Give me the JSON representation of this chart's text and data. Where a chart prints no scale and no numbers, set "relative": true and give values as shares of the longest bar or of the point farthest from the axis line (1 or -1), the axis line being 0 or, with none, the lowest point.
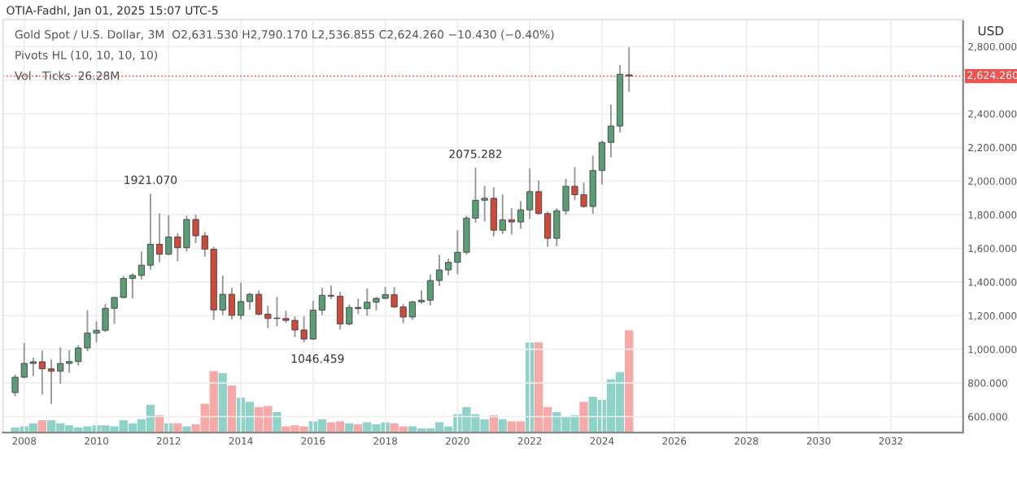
{
  "chart_data": [
    {
      "type": "candlestick",
      "title": "OTIA-Fadhl, Jan 01, 2025 15:07 UTC-5",
      "ylabel": "USD",
      "annotations": [
        "Gold Spot / U.S. Dollar, 3M  O2,631.530 H2,790.170 L2,536.855 C2,624.260 −10.430 (−0.40%)",
        "Pivots HL (10, 10, 10, 10)",
        "Vol · Ticks  26.28M",
        {
          "text": "1921.070",
          "x": "2011-07",
          "y": 1921.07
        },
        {
          "text": "2075.282",
          "x": "2020-07",
          "y": 2075.282
        },
        {
          "text": "1046.459",
          "x": "2015-10",
          "y": 1046.459
        }
      ],
      "x": [
        "2007-10",
        "2008-01",
        "2008-04",
        "2008-07",
        "2008-10",
        "2009-01",
        "2009-04",
        "2009-07",
        "2009-10",
        "2010-01",
        "2010-04",
        "2010-07",
        "2010-10",
        "2011-01",
        "2011-04",
        "2011-07",
        "2011-10",
        "2012-01",
        "2012-04",
        "2012-07",
        "2012-10",
        "2013-01",
        "2013-04",
        "2013-07",
        "2013-10",
        "2014-01",
        "2014-04",
        "2014-07",
        "2014-10",
        "2015-01",
        "2015-04",
        "2015-07",
        "2015-10",
        "2016-01",
        "2016-04",
        "2016-07",
        "2016-10",
        "2017-01",
        "2017-04",
        "2017-07",
        "2017-10",
        "2018-01",
        "2018-04",
        "2018-07",
        "2018-10",
        "2019-01",
        "2019-04",
        "2019-07",
        "2019-10",
        "2020-01",
        "2020-04",
        "2020-07",
        "2020-10",
        "2021-01",
        "2021-04",
        "2021-07",
        "2021-10",
        "2022-01",
        "2022-04",
        "2022-07",
        "2022-10",
        "2023-01",
        "2023-04",
        "2023-07",
        "2023-10",
        "2024-01",
        "2024-04",
        "2024-07",
        "2024-10"
      ],
      "ohlc": [
        [
          743,
          845,
          725,
          834
        ],
        [
          834,
          1032,
          833,
          916
        ],
        [
          916,
          946,
          845,
          926
        ],
        [
          926,
          988,
          735,
          884
        ],
        [
          884,
          935,
          681,
          870
        ],
        [
          870,
          1007,
          800,
          916
        ],
        [
          916,
          990,
          865,
          927
        ],
        [
          927,
          1018,
          908,
          1008
        ],
        [
          1008,
          1227,
          992,
          1096
        ],
        [
          1096,
          1162,
          1045,
          1113
        ],
        [
          1113,
          1265,
          1107,
          1244
        ],
        [
          1244,
          1308,
          1157,
          1308
        ],
        [
          1308,
          1432,
          1308,
          1421
        ],
        [
          1421,
          1447,
          1308,
          1439
        ],
        [
          1439,
          1577,
          1420,
          1500
        ],
        [
          1500,
          1921.07,
          1478,
          1624
        ],
        [
          1624,
          1803,
          1523,
          1565
        ],
        [
          1565,
          1792,
          1565,
          1668
        ],
        [
          1668,
          1685,
          1527,
          1604
        ],
        [
          1604,
          1790,
          1586,
          1772
        ],
        [
          1772,
          1796,
          1636,
          1675
        ],
        [
          1675,
          1693,
          1555,
          1595
        ],
        [
          1595,
          1605,
          1180,
          1234
        ],
        [
          1234,
          1434,
          1208,
          1327
        ],
        [
          1327,
          1361,
          1182,
          1202
        ],
        [
          1202,
          1392,
          1182,
          1284
        ],
        [
          1284,
          1332,
          1240,
          1327
        ],
        [
          1327,
          1345,
          1206,
          1209
        ],
        [
          1209,
          1255,
          1131,
          1183
        ],
        [
          1183,
          1307,
          1142,
          1183
        ],
        [
          1183,
          1224,
          1162,
          1172
        ],
        [
          1172,
          1191,
          1077,
          1115
        ],
        [
          1115,
          1191,
          1046.459,
          1061
        ],
        [
          1061,
          1283,
          1061,
          1233
        ],
        [
          1233,
          1362,
          1208,
          1321
        ],
        [
          1321,
          1375,
          1303,
          1316
        ],
        [
          1316,
          1337,
          1123,
          1151
        ],
        [
          1151,
          1262,
          1146,
          1249
        ],
        [
          1249,
          1296,
          1214,
          1242
        ],
        [
          1242,
          1357,
          1204,
          1280
        ],
        [
          1280,
          1307,
          1236,
          1303
        ],
        [
          1303,
          1366,
          1302,
          1325
        ],
        [
          1325,
          1365,
          1250,
          1252
        ],
        [
          1252,
          1265,
          1160,
          1192
        ],
        [
          1192,
          1284,
          1180,
          1282
        ],
        [
          1282,
          1346,
          1276,
          1292
        ],
        [
          1292,
          1439,
          1266,
          1409
        ],
        [
          1409,
          1557,
          1382,
          1472
        ],
        [
          1472,
          1535,
          1445,
          1517
        ],
        [
          1517,
          1703,
          1451,
          1577
        ],
        [
          1577,
          1789,
          1567,
          1780
        ],
        [
          1780,
          2075.282,
          1757,
          1886
        ],
        [
          1886,
          1966,
          1764,
          1898
        ],
        [
          1898,
          1959,
          1676,
          1708
        ],
        [
          1708,
          1916,
          1690,
          1770
        ],
        [
          1770,
          1834,
          1687,
          1757
        ],
        [
          1757,
          1877,
          1721,
          1829
        ],
        [
          1829,
          2070,
          1780,
          1937
        ],
        [
          1937,
          1998,
          1805,
          1807
        ],
        [
          1807,
          1814,
          1614,
          1660
        ],
        [
          1660,
          1834,
          1617,
          1824
        ],
        [
          1824,
          2009,
          1804,
          1969
        ],
        [
          1969,
          2079,
          1893,
          1919
        ],
        [
          1919,
          1987,
          1846,
          1849
        ],
        [
          1849,
          2146,
          1810,
          2063
        ],
        [
          2063,
          2236,
          1984,
          2230
        ],
        [
          2230,
          2450,
          2146,
          2327
        ],
        [
          2327,
          2685,
          2293,
          2635
        ],
        [
          2631.53,
          2790.17,
          2536.855,
          2624.26
        ]
      ],
      "ylim": [
        505,
        2960
      ],
      "yticks": [
        {
          "value": 600,
          "label": "600.000"
        },
        {
          "value": 800,
          "label": "800.000"
        },
        {
          "value": 1000,
          "label": "1,000.000"
        },
        {
          "value": 1200,
          "label": "1,200.000"
        },
        {
          "value": 1400,
          "label": "1,400.000"
        },
        {
          "value": 1600,
          "label": "1,600.000"
        },
        {
          "value": 1800,
          "label": "1,800.000"
        },
        {
          "value": 2000,
          "label": "2,000.000"
        },
        {
          "value": 2200,
          "label": "2,200.000"
        },
        {
          "value": 2400,
          "label": "2,400.000"
        },
        {
          "value": 2600,
          "label": null
        },
        {
          "value": 2800,
          "label": "2,800.000"
        }
      ],
      "xlim": [
        "2007-06",
        "2034-01"
      ],
      "xticks": [
        "2008",
        "2010",
        "2012",
        "2014",
        "2016",
        "2018",
        "2020",
        "2022",
        "2024",
        "2026",
        "2028",
        "2030",
        "2032"
      ],
      "ref_lines": [
        {
          "axis": "y",
          "value": 2624.26,
          "label": "2,624.260",
          "color": "#ef5350",
          "line_style": "dotted"
        }
      ],
      "grid": true
    },
    {
      "type": "bar",
      "relative": true,
      "categories": [
        null,
        null,
        null,
        null,
        null,
        null,
        null,
        null,
        null,
        null,
        null,
        null,
        null,
        null,
        null,
        null,
        null,
        null,
        null,
        null,
        null,
        null,
        null,
        null,
        null,
        null,
        null,
        null,
        null,
        null,
        null,
        null,
        null,
        null,
        null,
        null,
        null,
        null,
        null,
        null,
        null,
        null,
        null,
        null,
        null,
        null,
        null,
        null,
        null,
        null,
        null,
        null,
        null,
        null,
        null,
        null,
        null,
        null,
        null,
        null,
        null,
        null,
        null,
        null,
        null,
        null,
        null,
        null,
        null
      ],
      "values": [
        0.05,
        0.06,
        0.09,
        0.12,
        0.12,
        0.09,
        0.07,
        0.05,
        0.06,
        0.07,
        0.07,
        0.06,
        0.12,
        0.09,
        0.13,
        0.27,
        0.17,
        0.09,
        0.09,
        0.06,
        0.08,
        0.28,
        0.6,
        0.58,
        0.46,
        0.34,
        0.3,
        0.25,
        0.26,
        0.2,
        0.06,
        0.07,
        0.06,
        0.11,
        0.13,
        0.1,
        0.11,
        0.09,
        0.08,
        0.1,
        0.08,
        0.1,
        0.09,
        0.06,
        0.06,
        0.04,
        0.04,
        0.1,
        0.06,
        0.18,
        0.25,
        0.18,
        0.13,
        0.17,
        0.13,
        0.11,
        0.11,
        0.88,
        0.88,
        0.25,
        0.2,
        0.16,
        0.17,
        0.3,
        0.35,
        0.32,
        0.52,
        0.59,
        1
      ],
      "colors": [
        "#8fd3c8",
        "#8fd3c8",
        "#8fd3c8",
        "#f7a9a7",
        "#8fd3c8",
        "#8fd3c8",
        "#8fd3c8",
        "#8fd3c8",
        "#8fd3c8",
        "#8fd3c8",
        "#8fd3c8",
        "#8fd3c8",
        "#8fd3c8",
        "#8fd3c8",
        "#8fd3c8",
        "#8fd3c8",
        "#f7a9a7",
        "#8fd3c8",
        "#f7a9a7",
        "#8fd3c8",
        "#f7a9a7",
        "#f7a9a7",
        "#f7a9a7",
        "#8fd3c8",
        "#f7a9a7",
        "#8fd3c8",
        "#8fd3c8",
        "#f7a9a7",
        "#f7a9a7",
        "#8fd3c8",
        "#f7a9a7",
        "#f7a9a7",
        "#f7a9a7",
        "#8fd3c8",
        "#8fd3c8",
        "#f7a9a7",
        "#f7a9a7",
        "#8fd3c8",
        "#f7a9a7",
        "#8fd3c8",
        "#8fd3c8",
        "#8fd3c8",
        "#f7a9a7",
        "#f7a9a7",
        "#8fd3c8",
        "#8fd3c8",
        "#8fd3c8",
        "#8fd3c8",
        "#8fd3c8",
        "#8fd3c8",
        "#8fd3c8",
        "#8fd3c8",
        "#8fd3c8",
        "#f7a9a7",
        "#8fd3c8",
        "#f7a9a7",
        "#f7a9a7",
        "#8fd3c8",
        "#f7a9a7",
        "#f7a9a7",
        "#8fd3c8",
        "#8fd3c8",
        "#8fd3c8",
        "#f7a9a7",
        "#8fd3c8",
        "#8fd3c8",
        "#8fd3c8",
        "#8fd3c8",
        "#f7a9a7"
      ]
    }
  ]
}
